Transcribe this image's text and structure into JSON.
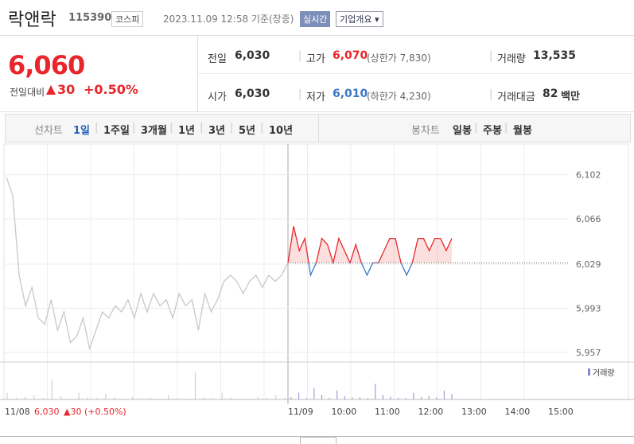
{
  "header": {
    "name": "락앤락",
    "code": "115390",
    "market": "코스피",
    "datetime": "2023.11.09 12:58 기준(장중)",
    "badge": "실시간",
    "menu": "기업개요 ▾"
  },
  "price": {
    "current": "6,060",
    "change_label": "전일대비",
    "change": "30",
    "change_pct": "+0.50%"
  },
  "stats": {
    "prev_label": "전일",
    "prev": "6,030",
    "high_label": "고가",
    "high": "6,070",
    "upper": "(상한가 7,830)",
    "volume_label": "거래량",
    "volume": "13,535",
    "open_label": "시가",
    "open": "6,030",
    "low_label": "저가",
    "low": "6,010",
    "lower": "(하한가 4,230)",
    "amount_label": "거래대금",
    "amount": "82",
    "amount_unit": "백만"
  },
  "tabs": {
    "line_label": "선차트",
    "line_options": [
      "1일",
      "1주일",
      "3개월",
      "1년",
      "3년",
      "5년",
      "10년"
    ],
    "candle_label": "봉차트",
    "candle_options": [
      "일봉",
      "주봉",
      "월봉"
    ]
  },
  "chart_data": {
    "type": "line",
    "ylim": [
      5951,
      6118
    ],
    "yticks": [
      {
        "value": 6102,
        "label": "6,102"
      },
      {
        "value": 6066,
        "label": "6,066"
      },
      {
        "value": 6029,
        "label": "6,029"
      },
      {
        "value": 5993,
        "label": "5,993"
      },
      {
        "value": 5957,
        "label": "5,957"
      }
    ],
    "prev_close": 6030,
    "x_labels": [
      "11/09",
      "10:00",
      "11:00",
      "12:00",
      "13:00",
      "14:00",
      "15:00"
    ],
    "prev_day": {
      "color": "#c8c8c8",
      "values": [
        6100,
        6085,
        6020,
        5995,
        6010,
        5985,
        5980,
        6000,
        5975,
        5990,
        5965,
        5970,
        5985,
        5960,
        5975,
        5990,
        5985,
        5995,
        5990,
        6000,
        5985,
        6005,
        5990,
        6005,
        5995,
        6000,
        5985,
        6005,
        5995,
        6000,
        5975,
        6005,
        5990,
        6000,
        6015,
        6020,
        6015,
        6005,
        6015,
        6020,
        6010,
        6020,
        6015,
        6020,
        6030
      ]
    },
    "today": {
      "up_color": "#e8262b",
      "down_color": "#3a78c9",
      "values": [
        6030,
        6060,
        6040,
        6050,
        6020,
        6030,
        6050,
        6045,
        6030,
        6050,
        6040,
        6030,
        6045,
        6030,
        6020,
        6030,
        6030,
        6040,
        6050,
        6050,
        6030,
        6020,
        6030,
        6050,
        6050,
        6040,
        6050,
        6050,
        6040,
        6050
      ]
    },
    "volume": {
      "label": "거래량",
      "ylim": [
        0,
        1500
      ],
      "prev": [
        300,
        80,
        120,
        200,
        60,
        900,
        150,
        40,
        300,
        100,
        60,
        250,
        80,
        40,
        120,
        60,
        90,
        30,
        200,
        70,
        40,
        1200,
        100,
        60,
        300,
        80,
        50,
        40,
        120,
        60,
        200,
        90
      ],
      "today": [
        100,
        300,
        60,
        500,
        200,
        80,
        400,
        150,
        90,
        100,
        60,
        700,
        200,
        120,
        80,
        60,
        300,
        100,
        150,
        90,
        400,
        250
      ]
    },
    "footer": {
      "date": "11/08",
      "close": "6,030",
      "change": "▲30 (+0.50%)"
    }
  }
}
